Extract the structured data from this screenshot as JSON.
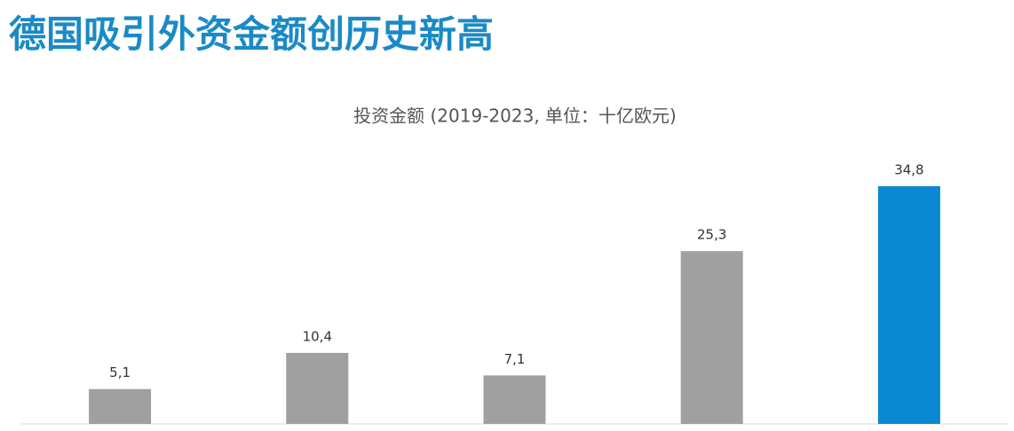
{
  "chart_data": {
    "type": "bar",
    "title": "德国吸引外资金额创历史新高",
    "subtitle": "投资金额 (2019-2023, 单位：十亿欧元)",
    "categories": [
      null,
      null,
      null,
      null,
      null
    ],
    "values": [
      5.1,
      10.4,
      7.1,
      25.3,
      34.8
    ],
    "value_labels": [
      "5,1",
      "10,4",
      "7,1",
      "25,3",
      "34,8"
    ],
    "colors": [
      "#a0a0a0",
      "#a0a0a0",
      "#a0a0a0",
      "#a0a0a0",
      "#0a88d2"
    ]
  }
}
